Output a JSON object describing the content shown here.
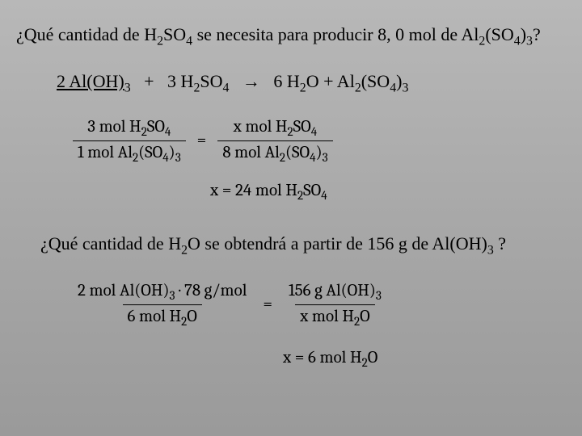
{
  "question1": {
    "prefix": "¿Qué cantidad de H",
    "s1": "2",
    "mid1": "SO",
    "s2": "4",
    "mid2": " se necesita para producir 8, 0 mol de Al",
    "s3": "2",
    "mid3": "(SO",
    "s4": "4",
    "mid4": ")",
    "s5": "3",
    "end": "?"
  },
  "equation": {
    "r1a": "2 Al(OH)",
    "r1s": "3",
    "plus1": "   +   3 H",
    "r2s1": "2",
    "r2m": "SO",
    "r2s2": "4",
    "arrow": "   →   6 H",
    "p1s": "2",
    "p1m": "O  + Al",
    "p2s1": "2",
    "p2m": "(SO",
    "p2s2": "4",
    "p2m2": ")",
    "p2s3": "3"
  },
  "frac1": {
    "num_l": "3 mol H",
    "num_l_s1": "2",
    "num_l_m": "SO",
    "num_l_s2": "4",
    "den_l": "1 mol Al",
    "den_l_s1": "2",
    "den_l_m": "(SO",
    "den_l_s2": "4",
    "den_l_m2": ")",
    "den_l_s3": "3",
    "num_r": "x mol H",
    "num_r_s1": "2",
    "num_r_m": "SO",
    "num_r_s2": "4",
    "den_r": "8 mol Al",
    "den_r_s1": "2",
    "den_r_m": "(SO",
    "den_r_s2": "4",
    "den_r_m2": ")",
    "den_r_s3": "3"
  },
  "result1": {
    "pre": "x = 24 mol H",
    "s1": "2",
    "m": "SO",
    "s2": "4"
  },
  "question2": {
    "pre": "¿Qué cantidad de H",
    "s1": "2",
    "m1": "O se obtendrá a partir de 156 g de Al(OH)",
    "s2": "3",
    "end": " ?"
  },
  "frac2": {
    "num_l_a": "2 mol Al(OH)",
    "num_l_s": "3",
    "num_l_b": " · 78 g/mol",
    "den_l": "6 mol H",
    "den_l_s": "2",
    "den_l_m": "O",
    "num_r": "156 g Al(OH)",
    "num_r_s": "3",
    "den_r": "x mol H",
    "den_r_s": "2",
    "den_r_m": "O"
  },
  "result2": {
    "pre": "x = 6 mol H",
    "s1": "2",
    "end": "O"
  },
  "eqsign": "="
}
